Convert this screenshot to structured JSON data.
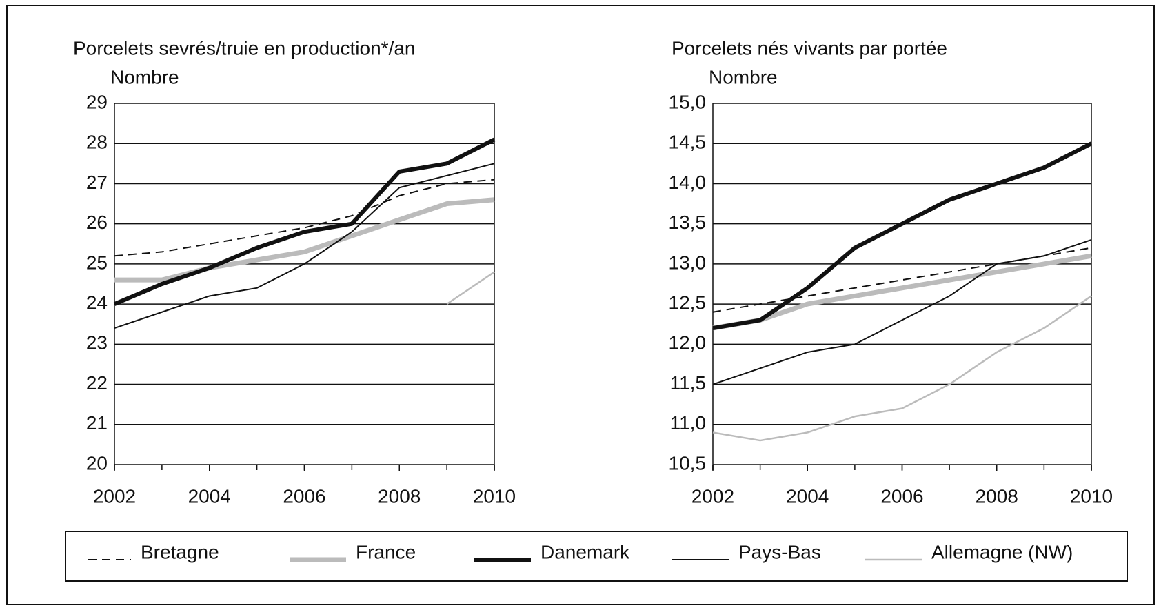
{
  "chart_data": [
    {
      "type": "line",
      "title": "Porcelets sevrés/truie en production*/an",
      "ylabel": "Nombre",
      "x": [
        2002,
        2003,
        2004,
        2005,
        2006,
        2007,
        2008,
        2009,
        2010
      ],
      "xlim": [
        2002,
        2010
      ],
      "xticks": [
        2002,
        2004,
        2006,
        2008,
        2010
      ],
      "ylim": [
        20,
        29
      ],
      "yticks": [
        20,
        21,
        22,
        23,
        24,
        25,
        26,
        27,
        28,
        29
      ],
      "grid": true,
      "series": [
        {
          "name": "Bretagne",
          "values": [
            25.2,
            25.3,
            25.5,
            25.7,
            25.9,
            26.2,
            26.7,
            27.0,
            27.1
          ]
        },
        {
          "name": "France",
          "values": [
            24.6,
            24.6,
            24.9,
            25.1,
            25.3,
            25.7,
            26.1,
            26.5,
            26.6
          ]
        },
        {
          "name": "Danemark",
          "values": [
            24.0,
            24.5,
            24.9,
            25.4,
            25.8,
            26.0,
            27.3,
            27.5,
            28.1
          ]
        },
        {
          "name": "Pays-Bas",
          "values": [
            23.4,
            23.8,
            24.2,
            24.4,
            25.0,
            25.8,
            26.9,
            27.2,
            27.5
          ]
        },
        {
          "name": "Allemagne (NW)",
          "values": [
            null,
            null,
            null,
            null,
            null,
            null,
            null,
            24.0,
            24.8
          ]
        }
      ]
    },
    {
      "type": "line",
      "title": "Porcelets nés vivants par portée",
      "ylabel": "Nombre",
      "x": [
        2002,
        2003,
        2004,
        2005,
        2006,
        2007,
        2008,
        2009,
        2010
      ],
      "xlim": [
        2002,
        2010
      ],
      "xticks": [
        2002,
        2004,
        2006,
        2008,
        2010
      ],
      "ylim": [
        10.5,
        15
      ],
      "yticks": [
        {
          "value": 10.5,
          "label": "10,5"
        },
        {
          "value": 11,
          "label": "11,0"
        },
        {
          "value": 11.5,
          "label": "11,5"
        },
        {
          "value": 12,
          "label": "12,0"
        },
        {
          "value": 12.5,
          "label": "12,5"
        },
        {
          "value": 13,
          "label": "13,0"
        },
        {
          "value": 13.5,
          "label": "13,5"
        },
        {
          "value": 14,
          "label": "14,0"
        },
        {
          "value": 14.5,
          "label": "14,5"
        },
        {
          "value": 15,
          "label": "15,0"
        }
      ],
      "grid": true,
      "series": [
        {
          "name": "Bretagne",
          "values": [
            12.4,
            12.5,
            12.6,
            12.7,
            12.8,
            12.9,
            13.0,
            13.1,
            13.2
          ]
        },
        {
          "name": "France",
          "values": [
            12.2,
            12.3,
            12.5,
            12.6,
            12.7,
            12.8,
            12.9,
            13.0,
            13.1
          ]
        },
        {
          "name": "Danemark",
          "values": [
            12.2,
            12.3,
            12.7,
            13.2,
            13.5,
            13.8,
            14.0,
            14.2,
            14.5
          ]
        },
        {
          "name": "Pays-Bas",
          "values": [
            11.5,
            11.7,
            11.9,
            12.0,
            12.3,
            12.6,
            13.0,
            13.1,
            13.3
          ]
        },
        {
          "name": "Allemagne (NW)",
          "values": [
            10.9,
            10.8,
            10.9,
            11.1,
            11.2,
            11.5,
            11.9,
            12.2,
            12.6
          ]
        }
      ]
    }
  ],
  "legend": [
    {
      "name": "Bretagne",
      "color": "#111111",
      "linewidth": 2,
      "linestyle": "dashed"
    },
    {
      "name": "France",
      "color": "#bbbbbb",
      "linewidth": 7,
      "linestyle": "solid"
    },
    {
      "name": "Danemark",
      "color": "#111111",
      "linewidth": 6,
      "linestyle": "solid"
    },
    {
      "name": "Pays-Bas",
      "color": "#111111",
      "linewidth": 2,
      "linestyle": "solid"
    },
    {
      "name": "Allemagne (NW)",
      "color": "#bbbbbb",
      "linewidth": 2.5,
      "linestyle": "solid"
    }
  ]
}
